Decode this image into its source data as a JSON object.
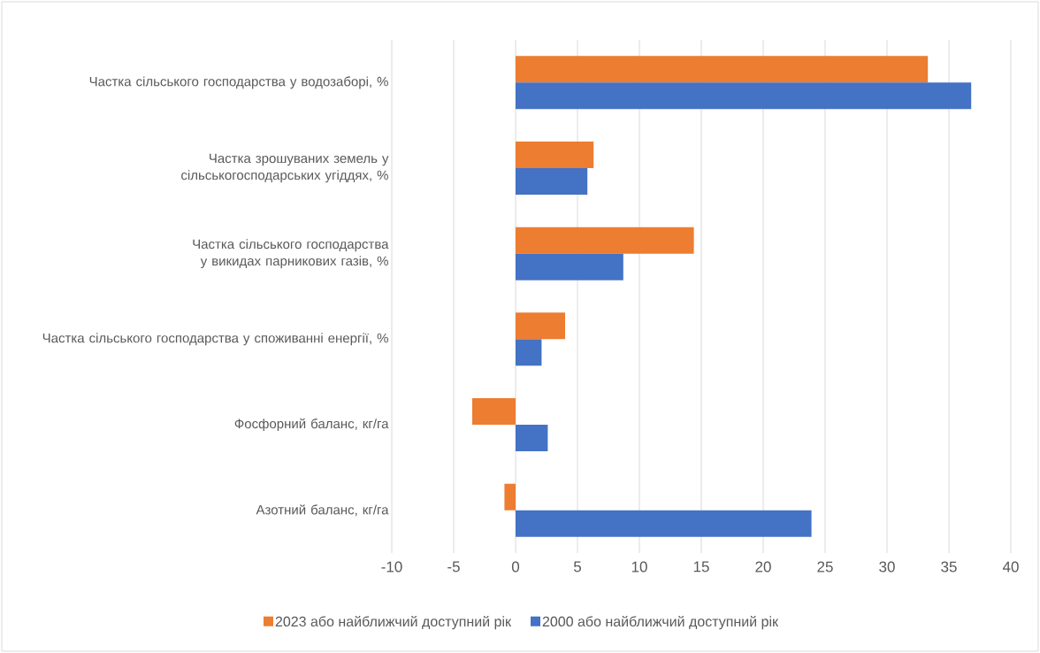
{
  "chart_data": {
    "type": "bar",
    "orientation": "horizontal",
    "categories": [
      "Частка сільського господарства у водозаборі, %",
      "Частка зрошуваних земель у сільськогосподарських угіддях, %",
      "Частка сільського господарства у викидах парникових газів, %",
      "Частка сільського господарства у споживанні енергії, %",
      "Фосфорний баланс, кг/га",
      "Азотний баланс, кг/га"
    ],
    "series": [
      {
        "name": "2023 або найближчий доступний рік",
        "color": "#ed7d31",
        "values": [
          33.3,
          6.3,
          14.4,
          4.0,
          -3.5,
          -0.9
        ]
      },
      {
        "name": "2000 або найближчий доступний рік",
        "color": "#4472c4",
        "values": [
          36.8,
          5.8,
          8.7,
          2.1,
          2.6,
          23.9
        ]
      }
    ],
    "xlim": [
      -10,
      40
    ],
    "xticks": [
      -10,
      -5,
      0,
      5,
      10,
      15,
      20,
      25,
      30,
      35,
      40
    ],
    "grid": "x",
    "legend": "bottom"
  }
}
